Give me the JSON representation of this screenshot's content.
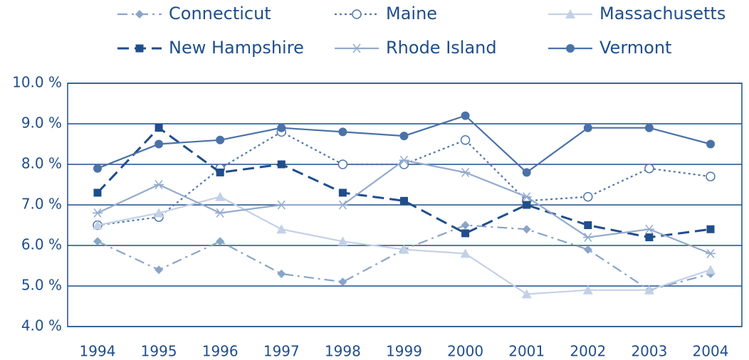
{
  "chart_data": {
    "type": "line",
    "categories": [
      "1994",
      "1995",
      "1996",
      "1997",
      "1998",
      "1999",
      "2000",
      "2001",
      "2002",
      "2003",
      "2004"
    ],
    "ylim": [
      4.0,
      10.0
    ],
    "yticks": [
      {
        "value": 4.0,
        "label": "4.0 %"
      },
      {
        "value": 5.0,
        "label": "5.0 %"
      },
      {
        "value": 6.0,
        "label": "6.0 %"
      },
      {
        "value": 7.0,
        "label": "7.0 %"
      },
      {
        "value": 8.0,
        "label": "8.0 %"
      },
      {
        "value": 9.0,
        "label": "9.0 %"
      },
      {
        "value": 10.0,
        "label": "10.0 %"
      }
    ],
    "grid": true,
    "series": [
      {
        "name": "Connecticut",
        "color": "#8aa4c8",
        "marker": "diamond",
        "dash": "14 6 3 6",
        "values": [
          6.1,
          5.4,
          6.1,
          5.3,
          5.1,
          5.9,
          6.5,
          6.4,
          5.9,
          4.9,
          5.3
        ]
      },
      {
        "name": "Maine",
        "color": "#4f78ad",
        "marker": "open-circle",
        "dash": "3 4",
        "values": [
          6.5,
          6.7,
          7.9,
          8.8,
          8.0,
          8.0,
          8.6,
          7.1,
          7.2,
          7.9,
          7.7
        ]
      },
      {
        "name": "Massachusetts",
        "color": "#c3d1e6",
        "marker": "triangle",
        "dash": "",
        "values": [
          6.5,
          6.8,
          7.2,
          6.4,
          6.1,
          5.9,
          5.8,
          4.8,
          4.9,
          4.9,
          5.4
        ]
      },
      {
        "name": "New Hampshire",
        "color": "#1f4e8c",
        "marker": "square",
        "dash": "16 8",
        "values": [
          7.3,
          8.9,
          7.8,
          8.0,
          7.3,
          7.1,
          6.3,
          7.0,
          6.5,
          6.2,
          6.4
        ]
      },
      {
        "name": "Rhode Island",
        "color": "#93abcd",
        "marker": "asterisk",
        "dash": "",
        "values": [
          6.8,
          7.5,
          6.8,
          7.0,
          7.0,
          8.1,
          7.8,
          7.2,
          6.2,
          6.4,
          5.8
        ]
      },
      {
        "name": "Vermont",
        "color": "#4a72a8",
        "marker": "circle",
        "dash": "",
        "values": [
          7.9,
          8.5,
          8.6,
          8.9,
          8.8,
          8.7,
          9.2,
          7.8,
          8.9,
          8.9,
          8.5
        ]
      }
    ]
  }
}
